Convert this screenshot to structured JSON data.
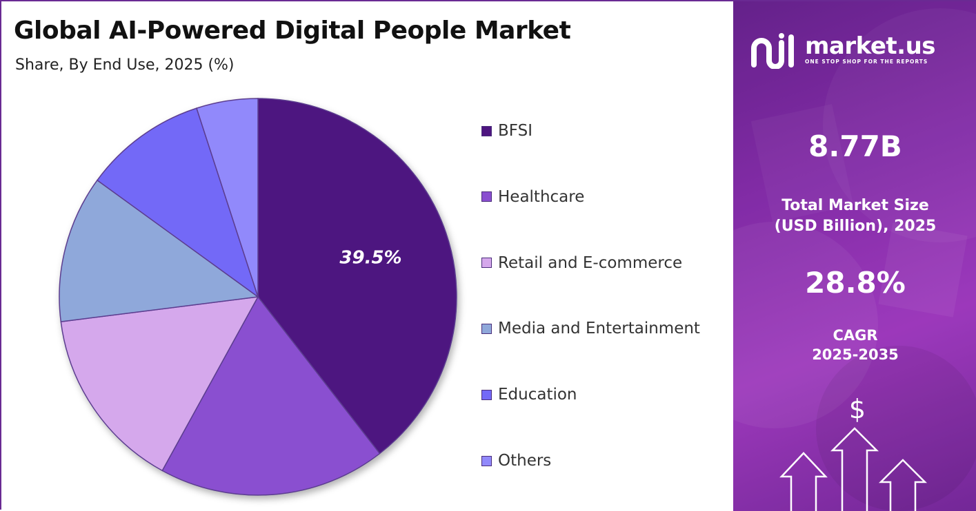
{
  "header": {
    "title": "Global AI-Powered Digital People Market",
    "subtitle": "Share, By End Use, 2025 (%)"
  },
  "chart_data": {
    "type": "pie",
    "title": "Global AI-Powered Digital People Market",
    "subtitle": "Share, By End Use, 2025 (%)",
    "categories": [
      "BFSI",
      "Healthcare",
      "Retail and E-commerce",
      "Media and Entertainment",
      "Education",
      "Others"
    ],
    "values": [
      39.5,
      18.5,
      15.0,
      12.0,
      10.0,
      5.0
    ],
    "colors": [
      "#4e1580",
      "#8a4fd0",
      "#d5a8ec",
      "#8fa8da",
      "#7369f7",
      "#9189fb"
    ],
    "data_labels": [
      {
        "category": "BFSI",
        "text": "39.5%"
      }
    ],
    "legend": "right",
    "start": "top",
    "direction": "clockwise"
  },
  "sidebar": {
    "brand_name": "market.us",
    "brand_tagline": "ONE STOP SHOP FOR THE REPORTS",
    "market_size_value": "8.77B",
    "market_size_label_line1": "Total Market Size",
    "market_size_label_line2": "(USD Billion), 2025",
    "cagr_value": "28.8%",
    "cagr_label_line1": "CAGR",
    "cagr_label_line2": "2025-2035",
    "dollar_symbol": "$",
    "colors": {
      "panel_top": "#6a2392",
      "panel_mid": "#a53cc6",
      "text": "#ffffff"
    }
  }
}
